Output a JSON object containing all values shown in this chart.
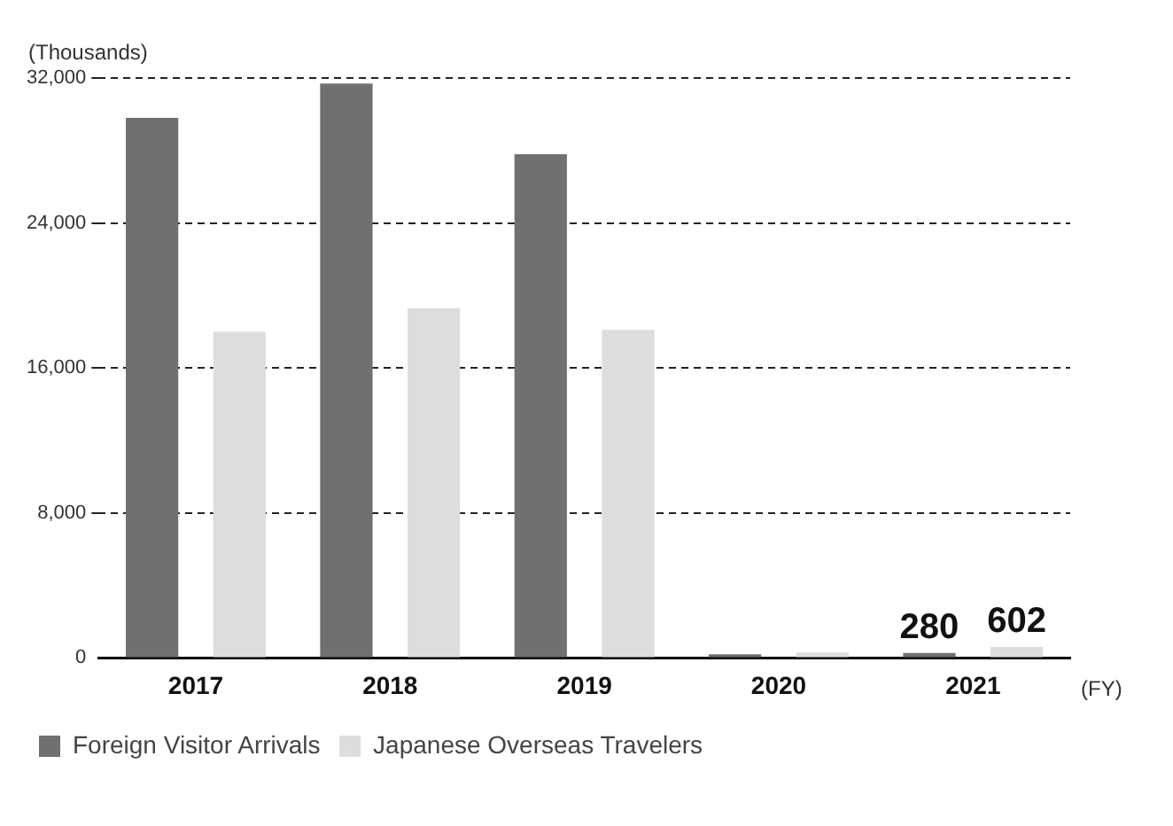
{
  "chart_data": {
    "type": "bar",
    "categories": [
      "2017",
      "2018",
      "2019",
      "2020",
      "2021"
    ],
    "series": [
      {
        "name": "Foreign Visitor Arrivals",
        "color": "#707070",
        "values": [
          29800,
          31700,
          27800,
          200,
          280
        ],
        "value_labels": [
          null,
          null,
          null,
          null,
          "280"
        ]
      },
      {
        "name": "Japanese Overseas Travelers",
        "color": "#dcdddc",
        "values": [
          18000,
          19300,
          18100,
          300,
          602
        ],
        "value_labels": [
          null,
          null,
          null,
          null,
          "602"
        ]
      }
    ],
    "ylim": [
      0,
      32000
    ],
    "yticks": [
      0,
      {
        "value": 8000,
        "label": "8,000"
      },
      {
        "value": 16000,
        "label": "16,000"
      },
      {
        "value": 24000,
        "label": "24,000"
      },
      {
        "value": 32000,
        "label": "32,000"
      }
    ],
    "grid": "y",
    "legend": "bottom",
    "annotations": [
      "(Thousands)",
      "(FY)"
    ]
  }
}
